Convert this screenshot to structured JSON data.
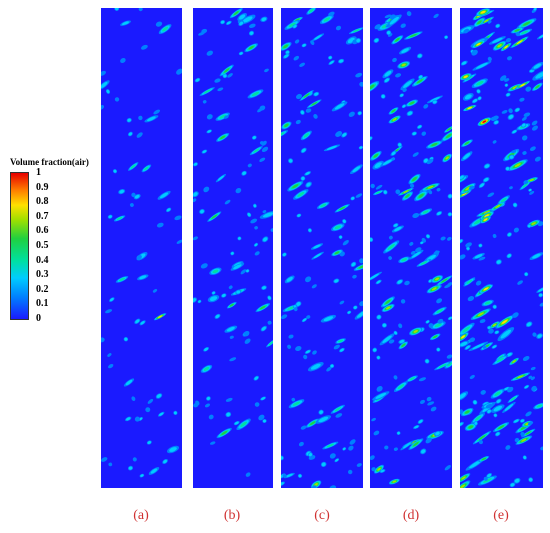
{
  "legend": {
    "title": "Volume fraction(air)",
    "ticks": [
      "1",
      "0.9",
      "0.8",
      "0.7",
      "0.6",
      "0.5",
      "0.4",
      "0.3",
      "0.2",
      "0.1",
      "0"
    ]
  },
  "panels": [
    {
      "label": "(a)",
      "density": 0.6,
      "intensity": 0.35
    },
    {
      "label": "(b)",
      "density": 1.0,
      "intensity": 0.55
    },
    {
      "label": "(c)",
      "density": 1.2,
      "intensity": 0.6
    },
    {
      "label": "(d)",
      "density": 1.5,
      "intensity": 0.75
    },
    {
      "label": "(e)",
      "density": 2.0,
      "intensity": 0.95
    }
  ],
  "colors": {
    "background": "#1a1aff",
    "scale": [
      "#1a1aff",
      "#0080ff",
      "#00ccff",
      "#00e0a0",
      "#20d040",
      "#a0e000",
      "#ffe000",
      "#ff8000",
      "#e80000"
    ]
  }
}
